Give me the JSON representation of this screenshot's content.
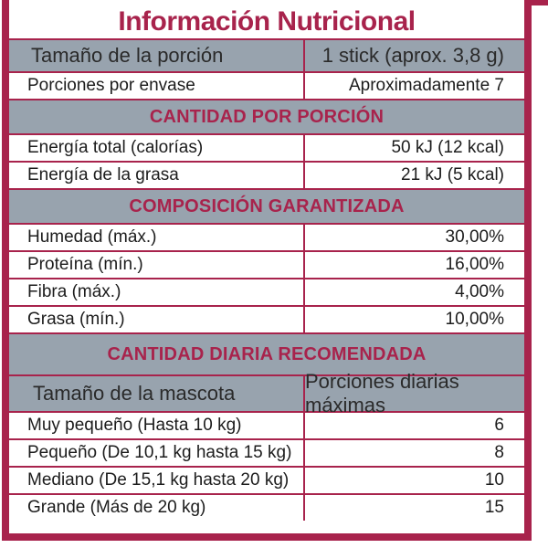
{
  "title": "Información Nutricional",
  "serving": {
    "label": "Tamaño de la porción",
    "value": "1 stick (aprox. 3,8 g)"
  },
  "servings_per_container": {
    "label": "Porciones por envase",
    "value": "Aproximadamente 7"
  },
  "section_amount": "CANTIDAD POR PORCIÓN",
  "energy_rows": [
    {
      "label": "Energía total (calorías)",
      "value": "50 kJ (12 kcal)"
    },
    {
      "label": "Energía de la grasa",
      "value": "21 kJ (5 kcal)"
    }
  ],
  "section_composition": "COMPOSICIÓN GARANTIZADA",
  "composition_rows": [
    {
      "label": "Humedad (máx.)",
      "value": "30,00%"
    },
    {
      "label": "Proteína (mín.)",
      "value": "16,00%"
    },
    {
      "label": "Fibra (máx.)",
      "value": "4,00%"
    },
    {
      "label": "Grasa (mín.)",
      "value": "10,00%"
    }
  ],
  "section_daily": "CANTIDAD DIARIA RECOMENDADA",
  "pet_header": {
    "left": "Tamaño de la mascota",
    "right": "Porciones diarias máximas"
  },
  "pet_rows": [
    {
      "label": "Muy pequeño (Hasta 10 kg)",
      "value": "6"
    },
    {
      "label": "Pequeño (De 10,1 kg hasta 15 kg)",
      "value": "8"
    },
    {
      "label": "Mediano (De 15,1  kg hasta 20 kg)",
      "value": "10"
    },
    {
      "label": "Grande (Más de 20 kg)",
      "value": "15"
    }
  ],
  "colors": {
    "accent": "#a8234c",
    "header_gray": "#98a3ae"
  }
}
